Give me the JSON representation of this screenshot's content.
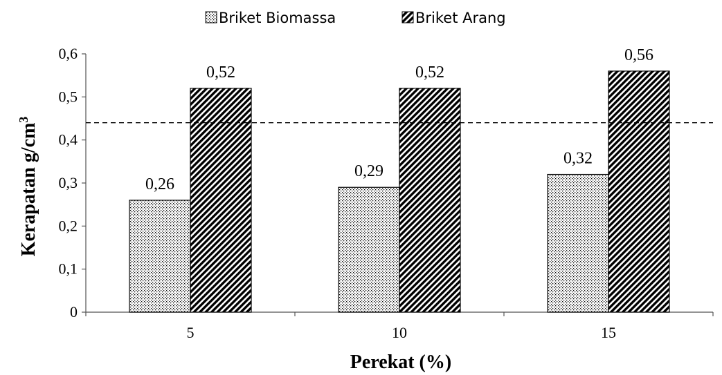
{
  "chart_data": {
    "type": "bar",
    "categories": [
      "5",
      "10",
      "15"
    ],
    "series": [
      {
        "name": "Briket Biomassa",
        "values": [
          0.26,
          0.29,
          0.32
        ],
        "labels": [
          "0,26",
          "0,29",
          "0,32"
        ],
        "pattern": "dots"
      },
      {
        "name": "Briket Arang",
        "values": [
          0.52,
          0.52,
          0.56
        ],
        "labels": [
          "0,52",
          "0,52",
          "0,56"
        ],
        "pattern": "diagonal-hatch"
      }
    ],
    "xlabel": "Perekat (%)",
    "ylabel": "Kerapatan g/cm",
    "ylabel_superscript": "3",
    "ylim": [
      0,
      0.6
    ],
    "yticks": [
      0,
      0.1,
      0.2,
      0.3,
      0.4,
      0.5,
      0.6
    ],
    "ytick_labels": [
      "0",
      "0,1",
      "0,2",
      "0,3",
      "0,4",
      "0,5",
      "0,6"
    ],
    "reference_line": {
      "value": 0.44,
      "style": "dashed"
    },
    "legend_position": "top-center",
    "grid": false
  }
}
